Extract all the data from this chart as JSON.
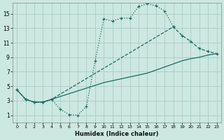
{
  "xlabel": "Humidex (Indice chaleur)",
  "bg_color": "#cce8e0",
  "grid_color": "#aaccc4",
  "line_color": "#1a6b60",
  "xlim": [
    -0.5,
    23.5
  ],
  "ylim": [
    0,
    16.5
  ],
  "xticks": [
    0,
    1,
    2,
    3,
    4,
    5,
    6,
    7,
    8,
    9,
    10,
    11,
    12,
    13,
    14,
    15,
    16,
    17,
    18,
    19,
    20,
    21,
    22,
    23
  ],
  "yticks": [
    1,
    3,
    5,
    7,
    9,
    11,
    13,
    15
  ],
  "curve1_x": [
    0,
    1,
    2,
    3,
    4,
    5,
    6,
    7,
    8,
    9,
    10,
    11,
    12,
    13,
    14,
    15,
    16,
    17,
    18
  ],
  "curve1_y": [
    4.5,
    3.2,
    2.8,
    2.8,
    3.2,
    1.8,
    1.1,
    1.0,
    2.2,
    8.5,
    14.3,
    14.0,
    14.4,
    14.4,
    16.0,
    16.4,
    16.1,
    15.4,
    13.2
  ],
  "curve2_x": [
    0,
    1,
    2,
    3,
    4,
    18,
    19,
    20,
    21,
    22,
    23
  ],
  "curve2_y": [
    4.5,
    3.2,
    2.8,
    2.8,
    3.2,
    13.2,
    12.0,
    11.2,
    10.2,
    9.8,
    9.5
  ],
  "curve3_x": [
    0,
    1,
    2,
    3,
    4,
    10,
    15,
    19,
    20,
    21,
    22,
    23
  ],
  "curve3_y": [
    4.5,
    3.2,
    2.8,
    2.8,
    3.2,
    5.5,
    6.8,
    8.5,
    8.8,
    9.0,
    9.3,
    9.5
  ]
}
